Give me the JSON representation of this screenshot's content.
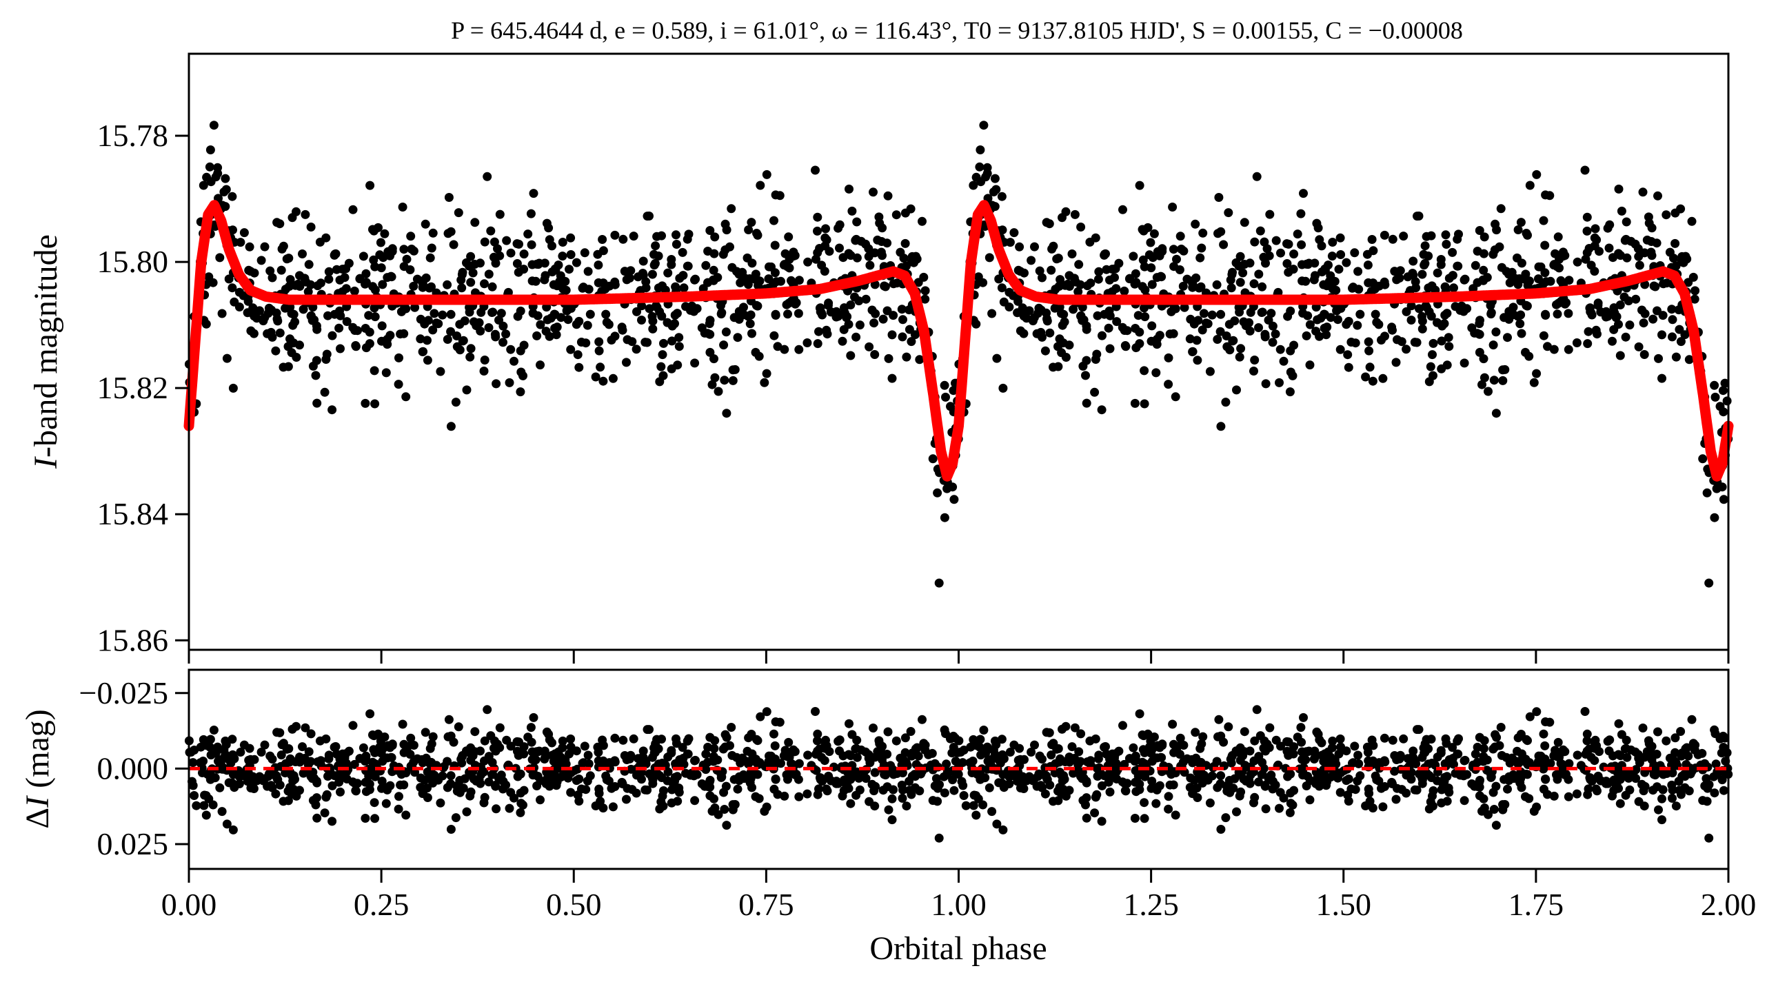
{
  "chart_data": [
    {
      "panel": "light-curve",
      "type": "scatter",
      "title": "P = 645.4644 d, e = 0.589, i = 61.01°, ω = 116.43°, T0 = 9137.8105 HJD', S = 0.00155, C = −0.00008",
      "title_parts": {
        "P": "645.4644 d",
        "e": "0.589",
        "i": "61.01°",
        "omega": "116.43°",
        "T0": "9137.8105 HJD'",
        "S": "0.00155",
        "C": "−0.00008"
      },
      "xlabel": "Orbital phase",
      "ylabel_italic": "I",
      "ylabel_rest": "-band magnitude",
      "xlim": [
        0,
        2
      ],
      "ylim": [
        15.8615,
        15.767
      ],
      "y_inverted": true,
      "yticks": [
        15.78,
        15.8,
        15.82,
        15.84,
        15.86
      ],
      "ytick_labels": [
        "15.78",
        "15.80",
        "15.82",
        "15.84",
        "15.86"
      ],
      "xticks": [
        0,
        0.25,
        0.5,
        0.75,
        1.0,
        1.25,
        1.5,
        1.75,
        2.0
      ],
      "grid": false,
      "marker_color": "#000000",
      "model_color": "#ff0000",
      "model_curve_one_cycle": [
        [
          0.0,
          15.826
        ],
        [
          0.008,
          15.813
        ],
        [
          0.016,
          15.8
        ],
        [
          0.025,
          15.7925
        ],
        [
          0.033,
          15.791
        ],
        [
          0.042,
          15.7935
        ],
        [
          0.052,
          15.798
        ],
        [
          0.065,
          15.802
        ],
        [
          0.08,
          15.8045
        ],
        [
          0.1,
          15.8055
        ],
        [
          0.13,
          15.806
        ],
        [
          0.3,
          15.806
        ],
        [
          0.5,
          15.806
        ],
        [
          0.65,
          15.8055
        ],
        [
          0.75,
          15.805
        ],
        [
          0.82,
          15.8043
        ],
        [
          0.87,
          15.803
        ],
        [
          0.9,
          15.802
        ],
        [
          0.915,
          15.8015
        ],
        [
          0.93,
          15.8022
        ],
        [
          0.943,
          15.805
        ],
        [
          0.955,
          15.811
        ],
        [
          0.967,
          15.821
        ],
        [
          0.977,
          15.83
        ],
        [
          0.985,
          15.834
        ],
        [
          0.992,
          15.832
        ],
        [
          1.0,
          15.826
        ]
      ],
      "observations": {
        "points_per_cycle": 900,
        "residual_std_mag": 0.0065,
        "seed": 7,
        "repeated_over_cycles": 2
      }
    },
    {
      "panel": "residuals",
      "type": "scatter",
      "xlabel": "Orbital phase",
      "ylabel_prefix": "Δ",
      "ylabel_italic": "I",
      "ylabel_rest": " (mag)",
      "xlim": [
        0,
        2
      ],
      "ylim": [
        0.0332,
        -0.0327
      ],
      "y_inverted": true,
      "yticks": [
        -0.025,
        0.0,
        0.025
      ],
      "ytick_labels": [
        "−0.025",
        "0.000",
        "0.025"
      ],
      "xticks": [
        0,
        0.25,
        0.5,
        0.75,
        1.0,
        1.25,
        1.5,
        1.75,
        2.0
      ],
      "xtick_labels": [
        "0.00",
        "0.25",
        "0.50",
        "0.75",
        "1.00",
        "1.25",
        "1.50",
        "1.75",
        "2.00"
      ],
      "zero_line": {
        "value": 0.0,
        "style": "dashed",
        "color": "#ff0000"
      },
      "grid": false
    }
  ]
}
